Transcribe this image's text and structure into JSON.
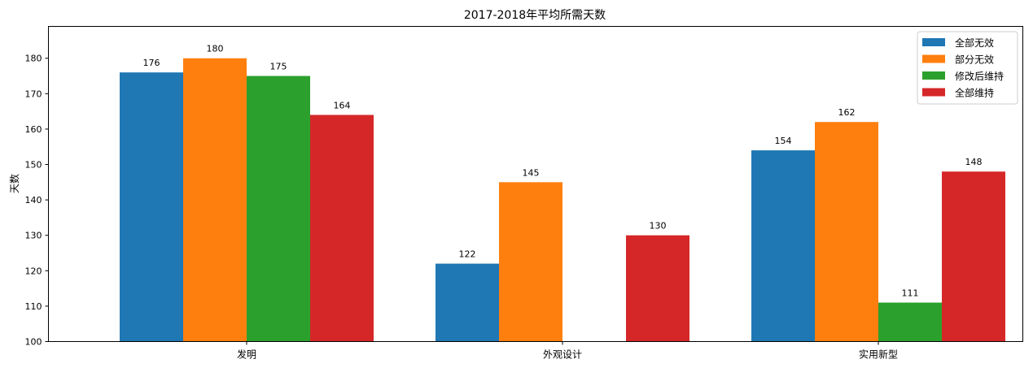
{
  "chart_data": {
    "type": "bar",
    "title": "2017-2018年平均所需天数",
    "xlabel": "",
    "ylabel": "天数",
    "categories": [
      "发明",
      "外观设计",
      "实用新型"
    ],
    "series": [
      {
        "name": "全部无效",
        "color": "#1f77b4",
        "values": [
          176,
          122,
          154
        ]
      },
      {
        "name": "部分无效",
        "color": "#ff7f0e",
        "values": [
          180,
          145,
          162
        ]
      },
      {
        "name": "修改后维持",
        "color": "#2ca02c",
        "values": [
          175,
          null,
          111
        ]
      },
      {
        "name": "全部维持",
        "color": "#d62728",
        "values": [
          164,
          130,
          148
        ]
      }
    ],
    "ylim": [
      100,
      189
    ],
    "yticks": [
      100,
      110,
      120,
      130,
      140,
      150,
      160,
      170,
      180
    ],
    "grid": false,
    "legend": "top-right",
    "data_labels": true
  }
}
